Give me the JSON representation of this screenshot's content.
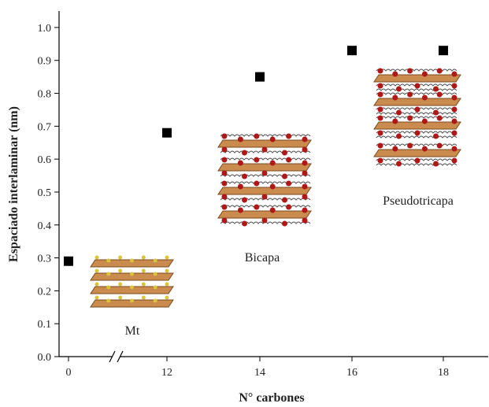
{
  "chart_data": {
    "type": "scatter",
    "x_label": "N° carbones",
    "y_label": "Espaciado interlaminar (nm)",
    "categories": [
      "0",
      "12",
      "14",
      "16",
      "18"
    ],
    "values": [
      0.29,
      0.68,
      0.85,
      0.93,
      0.93
    ],
    "color": "#000000",
    "ylim": [
      0,
      1.05
    ],
    "yticks": [
      {
        "value": 0,
        "label": "0.0"
      },
      0.1,
      0.2,
      0.3,
      0.4,
      0.5,
      0.6,
      0.7,
      0.8,
      0.9,
      {
        "value": 1.0,
        "label": "1.0"
      }
    ],
    "annotations": [
      "Mt",
      "Bicapa",
      "Pseudotricapa"
    ]
  }
}
